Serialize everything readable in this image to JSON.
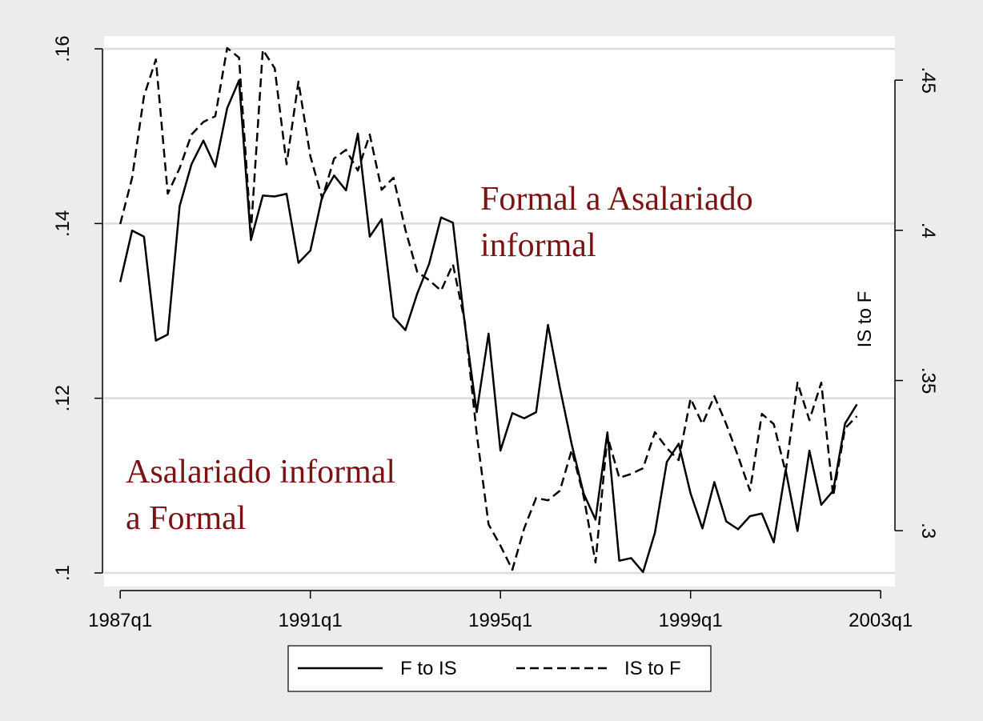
{
  "chart_data": {
    "type": "line",
    "y2label": "IS to F",
    "annotations": [
      {
        "lines": [
          "Formal a Asalariado",
          "informal"
        ]
      },
      {
        "lines": [
          "Asalariado informal",
          "a Formal"
        ]
      }
    ],
    "x": [
      1987,
      1987.25,
      1987.5,
      1987.75,
      1988,
      1988.25,
      1988.5,
      1988.75,
      1989,
      1989.25,
      1989.5,
      1989.75,
      1990,
      1990.25,
      1990.5,
      1990.75,
      1991,
      1991.25,
      1991.5,
      1991.75,
      1992,
      1992.25,
      1992.5,
      1992.75,
      1993,
      1993.25,
      1993.5,
      1993.75,
      1994,
      1994.25,
      1994.5,
      1994.75,
      1995,
      1995.25,
      1995.5,
      1995.75,
      1996,
      1996.25,
      1996.5,
      1996.75,
      1997,
      1997.25,
      1997.5,
      1997.75,
      1998,
      1998.25,
      1998.5,
      1998.75,
      1999,
      1999.25,
      1999.5,
      1999.75,
      2000,
      2000.25,
      2000.5,
      2000.75,
      2001,
      2001.25,
      2001.5,
      2001.75,
      2002,
      2002.25,
      2002.5
    ],
    "series": [
      {
        "name": "F to IS",
        "color": "#000000",
        "dash": "solid",
        "axis": "y",
        "values": [
          0.1333,
          0.1392,
          0.1385,
          0.1266,
          0.1273,
          0.142,
          0.1468,
          0.1495,
          0.1465,
          0.1532,
          0.1564,
          0.1381,
          0.1432,
          0.1431,
          0.1434,
          0.1355,
          0.1369,
          0.1431,
          0.1455,
          0.1438,
          0.1503,
          0.1385,
          0.1405,
          0.1293,
          0.1278,
          0.132,
          0.1354,
          0.1407,
          0.1401,
          0.1285,
          0.1184,
          0.1274,
          0.114,
          0.1183,
          0.1177,
          0.1184,
          0.1284,
          0.1212,
          0.1147,
          0.1091,
          0.1061,
          0.1161,
          0.1014,
          0.1017,
          0.1001,
          0.1046,
          0.1127,
          0.1148,
          0.1091,
          0.1051,
          0.1104,
          0.1059,
          0.105,
          0.1065,
          0.1068,
          0.1035,
          0.1118,
          0.1048,
          0.114,
          0.1078,
          0.1094,
          0.1171,
          0.1193
        ]
      },
      {
        "name": "IS to F",
        "color": "#000000",
        "dash": "dashed",
        "axis": "y2",
        "values": [
          0.4021,
          0.4175,
          0.4447,
          0.4569,
          0.4122,
          0.4207,
          0.4319,
          0.4361,
          0.438,
          0.4607,
          0.4575,
          0.3994,
          0.4601,
          0.454,
          0.422,
          0.4495,
          0.4247,
          0.4106,
          0.4239,
          0.4268,
          0.4199,
          0.4319,
          0.4135,
          0.4175,
          0.4002,
          0.3861,
          0.3834,
          0.3799,
          0.3887,
          0.3695,
          0.3323,
          0.3021,
          0.295,
          0.287,
          0.3008,
          0.3109,
          0.3101,
          0.3133,
          0.3269,
          0.3115,
          0.2894,
          0.3315,
          0.3176,
          0.3189,
          0.3208,
          0.3328,
          0.3275,
          0.3235,
          0.344,
          0.3355,
          0.3448,
          0.3355,
          0.3248,
          0.3133,
          0.3389,
          0.3355,
          0.3195,
          0.3493,
          0.3368,
          0.3493,
          0.3115,
          0.3341,
          0.3381
        ]
      }
    ],
    "xlim": [
      1986.66,
      2003.3
    ],
    "xticks": [
      {
        "value": 1987,
        "label": "1987q1"
      },
      {
        "value": 1991,
        "label": "1991q1"
      },
      {
        "value": 1995,
        "label": "1995q1"
      },
      {
        "value": 1999,
        "label": "1999q1"
      },
      {
        "value": 2003,
        "label": "2003q1"
      }
    ],
    "ylim": [
      0.09844,
      0.16147
    ],
    "yticks": [
      {
        "value": 0.1,
        "label": ".1"
      },
      {
        "value": 0.12,
        "label": ".12"
      },
      {
        "value": 0.14,
        "label": ".14"
      },
      {
        "value": 0.16,
        "label": ".16"
      }
    ],
    "y2lim": [
      0.2814,
      0.4647
    ],
    "y2ticks": [
      {
        "value": 0.3,
        "label": ".3"
      },
      {
        "value": 0.35,
        "label": ".35"
      },
      {
        "value": 0.4,
        "label": ".4"
      },
      {
        "value": 0.45,
        "label": ".45"
      }
    ],
    "grid": true,
    "legend": "bottom"
  }
}
